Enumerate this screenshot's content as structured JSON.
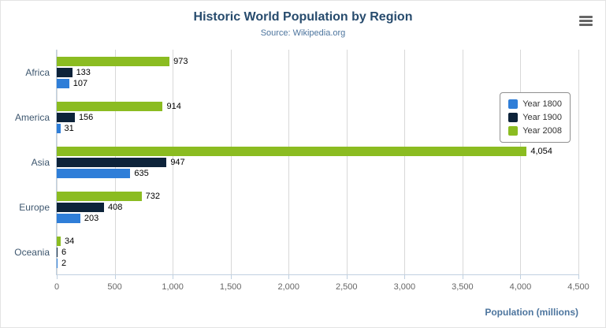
{
  "chart_data": {
    "type": "bar",
    "title": "Historic World Population by Region",
    "subtitle": "Source: Wikipedia.org",
    "categories": [
      "Africa",
      "America",
      "Asia",
      "Europe",
      "Oceania"
    ],
    "series": [
      {
        "name": "Year 1800",
        "color": "#2f7ed8",
        "values": [
          107,
          31,
          635,
          203,
          2
        ]
      },
      {
        "name": "Year 1900",
        "color": "#0d233a",
        "values": [
          133,
          156,
          947,
          408,
          6
        ]
      },
      {
        "name": "Year 2008",
        "color": "#8bbc21",
        "values": [
          973,
          914,
          4054,
          732,
          34
        ]
      }
    ],
    "xlabel": "Population (millions)",
    "ylabel": "",
    "xlim": [
      0,
      4500
    ],
    "xticks": [
      0,
      500,
      1000,
      1500,
      2000,
      2500,
      3000,
      3500,
      4000,
      4500
    ],
    "grid": true,
    "legend_position": "right",
    "bar_order_top_to_bottom": [
      "Year 2008",
      "Year 1900",
      "Year 1800"
    ]
  },
  "icons": {
    "export_menu": "hamburger-menu-icon"
  },
  "colors": {
    "title": "#274b6d",
    "subtitle": "#4d759e",
    "gridline": "#d8d8d8",
    "axis_line": "#c0d0e0"
  }
}
